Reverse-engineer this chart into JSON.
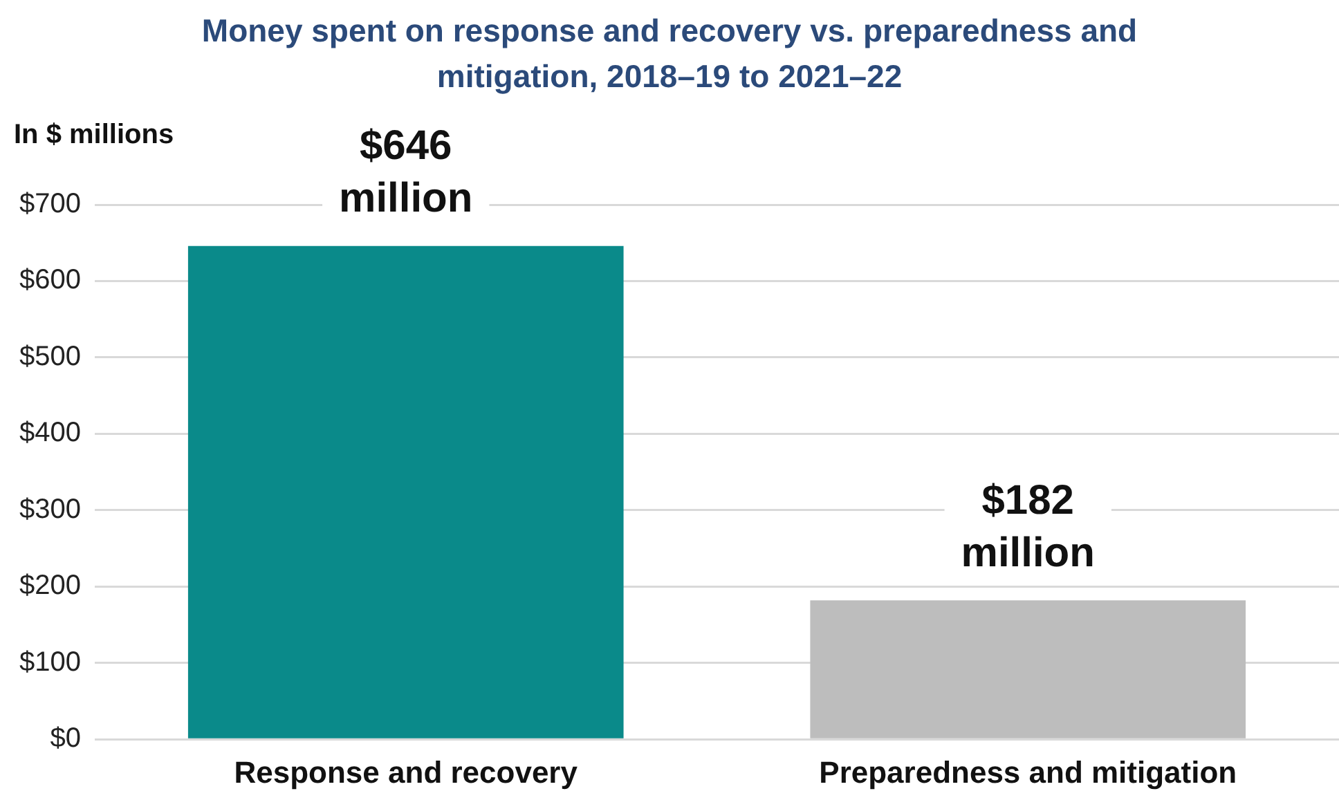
{
  "chart_data": {
    "type": "bar",
    "title": "Money spent on response and recovery vs. preparedness and mitigation, 2018–19 to 2021–22",
    "ylabel": "In $ millions",
    "categories": [
      "Response and recovery",
      "Preparedness and mitigation"
    ],
    "values": [
      646,
      182
    ],
    "colors": [
      "#0a8a8a",
      "#bdbdbd"
    ],
    "value_labels": [
      "$646 million",
      "$182 million"
    ],
    "ylim": [
      0,
      700
    ],
    "yticks": [
      {
        "value": 0,
        "label": "$0"
      },
      {
        "value": 100,
        "label": "$100"
      },
      {
        "value": 200,
        "label": "$200"
      },
      {
        "value": 300,
        "label": "$300"
      },
      {
        "value": 400,
        "label": "$400"
      },
      {
        "value": 500,
        "label": "$500"
      },
      {
        "value": 600,
        "label": "$600"
      },
      {
        "value": 700,
        "label": "$700"
      }
    ],
    "grid": "y",
    "legend": false
  }
}
